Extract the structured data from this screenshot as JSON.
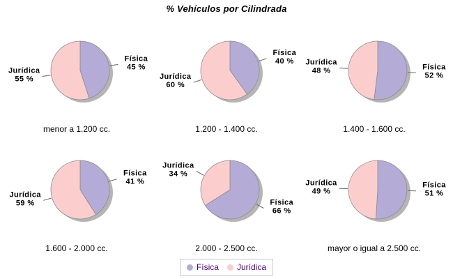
{
  "title": "% Vehículos por Cilindrada",
  "style": {
    "fisica_color": "#b5abd7",
    "juridica_color": "#fbcecd",
    "slice_outline": "#8c8c8c",
    "shadow_color": "#a3a3a3",
    "leader_line": "#666666",
    "legend_text": "#4b0082",
    "legend_border": "#c8c6d4",
    "background": "#ffffff"
  },
  "chart_data": {
    "type": "pie",
    "title": "% Vehículos por Cilindrada",
    "value_suffix": " %",
    "start_angle": "12-o-clock, clockwise",
    "slice_order": [
      "Física",
      "Jurídica"
    ],
    "colors": {
      "Física": "#b5abd7",
      "Jurídica": "#fbcecd"
    },
    "legend": {
      "position": "bottom-center",
      "entries": [
        {
          "label": "Física",
          "color": "#b5abd7"
        },
        {
          "label": "Jurídica",
          "color": "#fbcecd"
        }
      ]
    },
    "pies": [
      {
        "category": "menor a 1.200 cc.",
        "slices": [
          {
            "label": "Física",
            "value": 45
          },
          {
            "label": "Jurídica",
            "value": 55
          }
        ]
      },
      {
        "category": "1.200 - 1.400 cc.",
        "slices": [
          {
            "label": "Física",
            "value": 40
          },
          {
            "label": "Jurídica",
            "value": 60
          }
        ]
      },
      {
        "category": "1.400 - 1.600 cc.",
        "slices": [
          {
            "label": "Física",
            "value": 52
          },
          {
            "label": "Jurídica",
            "value": 48
          }
        ]
      },
      {
        "category": "1.600 - 2.000 cc.",
        "slices": [
          {
            "label": "Física",
            "value": 41
          },
          {
            "label": "Jurídica",
            "value": 59
          }
        ]
      },
      {
        "category": "2.000 - 2.500 cc.",
        "slices": [
          {
            "label": "Física",
            "value": 66
          },
          {
            "label": "Jurídica",
            "value": 34
          }
        ]
      },
      {
        "category": "mayor o igual a 2.500 cc.",
        "slices": [
          {
            "label": "Física",
            "value": 51
          },
          {
            "label": "Jurídica",
            "value": 49
          }
        ]
      }
    ]
  }
}
